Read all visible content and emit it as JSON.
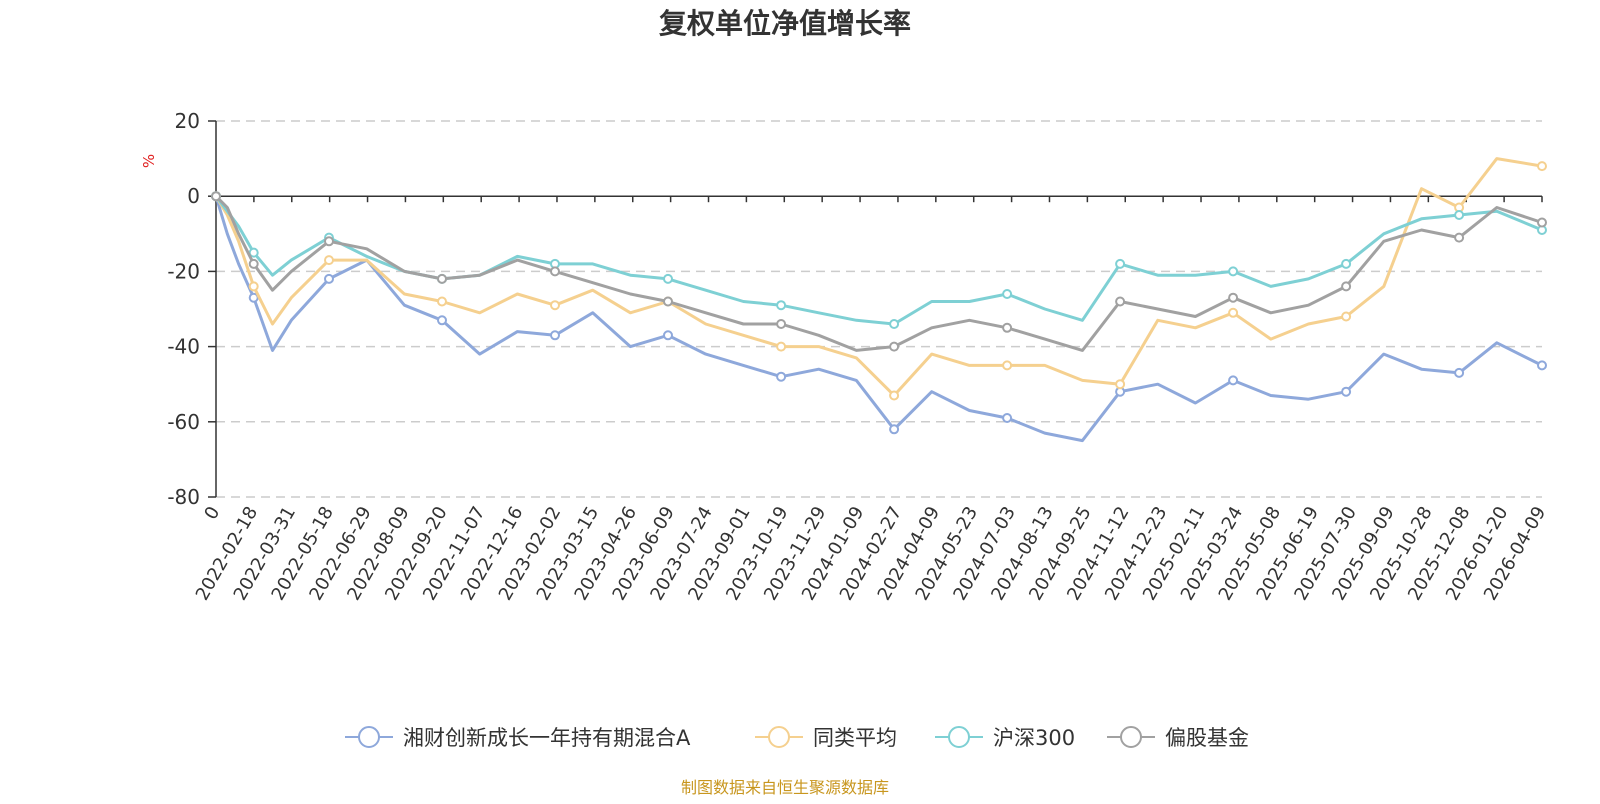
{
  "chart_data": {
    "type": "line",
    "title": "复权单位净值增长率",
    "ylabel": "%",
    "ylim": [
      -80,
      20
    ],
    "yticks": [
      20,
      0,
      -20,
      -40,
      -60,
      -80
    ],
    "ytick_labels": [
      "20",
      "0",
      "-20",
      "-40",
      "-60",
      "-80"
    ],
    "xtick_labels": [
      "0",
      "2022-02-18",
      "2022-03-31",
      "2022-05-18",
      "2022-06-29",
      "2022-08-09",
      "2022-09-20",
      "2022-11-07",
      "2022-12-16",
      "2023-02-02",
      "2023-03-15",
      "2023-04-26",
      "2023-06-09",
      "2023-07-24",
      "2023-09-01",
      "2023-10-19",
      "2023-11-29",
      "2024-01-09",
      "2024-02-27",
      "2024-04-09",
      "2024-05-23",
      "2024-07-03",
      "2024-08-13",
      "2024-09-25",
      "2024-11-12",
      "2024-12-23",
      "2025-02-11",
      "2025-03-24",
      "2025-05-08",
      "2025-06-19",
      "2025-07-30",
      "2025-09-09",
      "2025-10-28",
      "2025-12-08",
      "2026-01-20",
      "2026-04-09"
    ],
    "x": [
      0,
      0.3,
      0.6,
      1,
      1.5,
      2,
      3,
      4,
      5,
      6,
      7,
      8,
      9,
      10,
      11,
      12,
      13,
      14,
      15,
      16,
      17,
      18,
      19,
      20,
      21,
      22,
      23,
      24,
      25,
      26,
      27,
      28,
      29,
      30,
      31,
      32,
      33,
      34,
      35.2
    ],
    "grid": true,
    "legend_position": "bottom",
    "series": [
      {
        "name": "湘财创新成长一年持有期混合A",
        "color": "#8ea8db",
        "values": [
          0,
          -10,
          -18,
          -27,
          -41,
          -33,
          -22,
          -17,
          -29,
          -33,
          -42,
          -36,
          -37,
          -31,
          -40,
          -37,
          -42,
          -45,
          -48,
          -46,
          -49,
          -62,
          -52,
          -57,
          -59,
          -63,
          -65,
          -52,
          -50,
          -55,
          -49,
          -53,
          -54,
          -52,
          -42,
          -46,
          -47,
          -39,
          -45
        ]
      },
      {
        "name": "同类平均",
        "color": "#f5d08f",
        "values": [
          0,
          -5,
          -12,
          -24,
          -34,
          -27,
          -17,
          -17,
          -26,
          -28,
          -31,
          -26,
          -29,
          -25,
          -31,
          -28,
          -34,
          -37,
          -40,
          -40,
          -43,
          -53,
          -42,
          -45,
          -45,
          -45,
          -49,
          -50,
          -33,
          -35,
          -31,
          -38,
          -34,
          -32,
          -24,
          2,
          -3,
          10,
          8
        ]
      },
      {
        "name": "沪深300",
        "color": "#7ed0d4",
        "values": [
          0,
          -4,
          -8,
          -15,
          -21,
          -17,
          -11,
          -16,
          -20,
          -22,
          -21,
          -16,
          -18,
          -18,
          -21,
          -22,
          -25,
          -28,
          -29,
          -31,
          -33,
          -34,
          -28,
          -28,
          -26,
          -30,
          -33,
          -18,
          -21,
          -21,
          -20,
          -24,
          -22,
          -18,
          -10,
          -6,
          -5,
          -4,
          -9
        ]
      },
      {
        "name": "偏股基金",
        "color": "#a1a1a1",
        "values": [
          0,
          -3,
          -10,
          -18,
          -25,
          -20,
          -12,
          -14,
          -20,
          -22,
          -21,
          -17,
          -20,
          -23,
          -26,
          -28,
          -31,
          -34,
          -34,
          -37,
          -41,
          -40,
          -35,
          -33,
          -35,
          -38,
          -41,
          -28,
          -30,
          -32,
          -27,
          -31,
          -29,
          -24,
          -12,
          -9,
          -11,
          -3,
          -7
        ]
      }
    ]
  },
  "legend": {
    "items": [
      {
        "label": "湘财创新成长一年持有期混合A",
        "color": "#8ea8db"
      },
      {
        "label": "同类平均",
        "color": "#f5d08f"
      },
      {
        "label": "沪深300",
        "color": "#7ed0d4"
      },
      {
        "label": "偏股基金",
        "color": "#a1a1a1"
      }
    ]
  },
  "footer": {
    "source_text": "制图数据来自恒生聚源数据库",
    "source_color": "#c8961e"
  },
  "colors": {
    "unit_label": "#e02020",
    "grid": "#cccccc",
    "axis": "#333333"
  }
}
